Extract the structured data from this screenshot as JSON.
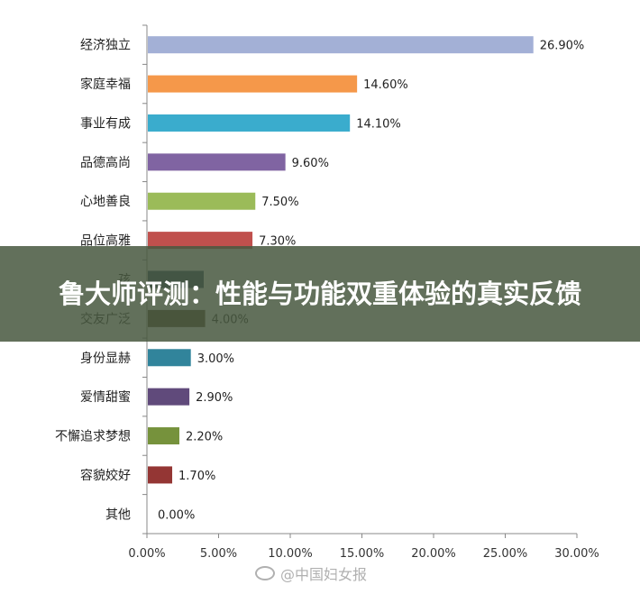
{
  "overlay": {
    "title": "鲁大师评测：性能与功能双重体验的真实反馈"
  },
  "watermark": {
    "text": "@中国妇女报"
  },
  "chart_data": {
    "type": "bar",
    "orientation": "horizontal",
    "categories": [
      "经济独立",
      "家庭幸福",
      "事业有成",
      "品德高尚",
      "心地善良",
      "品位高雅",
      "孩",
      "交友广泛",
      "身份显赫",
      "爱情甜蜜",
      "不懈追求梦想",
      "容貌姣好",
      "其他"
    ],
    "values": [
      26.9,
      14.6,
      14.1,
      9.6,
      7.5,
      7.3,
      null,
      4.0,
      3.0,
      2.9,
      2.2,
      1.7,
      0.0
    ],
    "value_labels": [
      "26.90%",
      "14.60%",
      "14.10%",
      "9.60%",
      "7.50%",
      "7.30%",
      "",
      "4.00%",
      "3.00%",
      "2.90%",
      "2.20%",
      "1.70%",
      "0.00%"
    ],
    "colors": [
      "#a3b0d6",
      "#f5984a",
      "#3aaccd",
      "#8064a2",
      "#9bbb59",
      "#c0504d",
      "#27445c",
      "#4e3f24",
      "#31849b",
      "#604a7b",
      "#76923c",
      "#943634",
      "#7f7f7f"
    ],
    "xlim": [
      0,
      30
    ],
    "x_ticks": [
      "0.00%",
      "5.00%",
      "10.00%",
      "15.00%",
      "20.00%",
      "25.00%",
      "30.00%"
    ],
    "grid": false,
    "legend": "none"
  }
}
